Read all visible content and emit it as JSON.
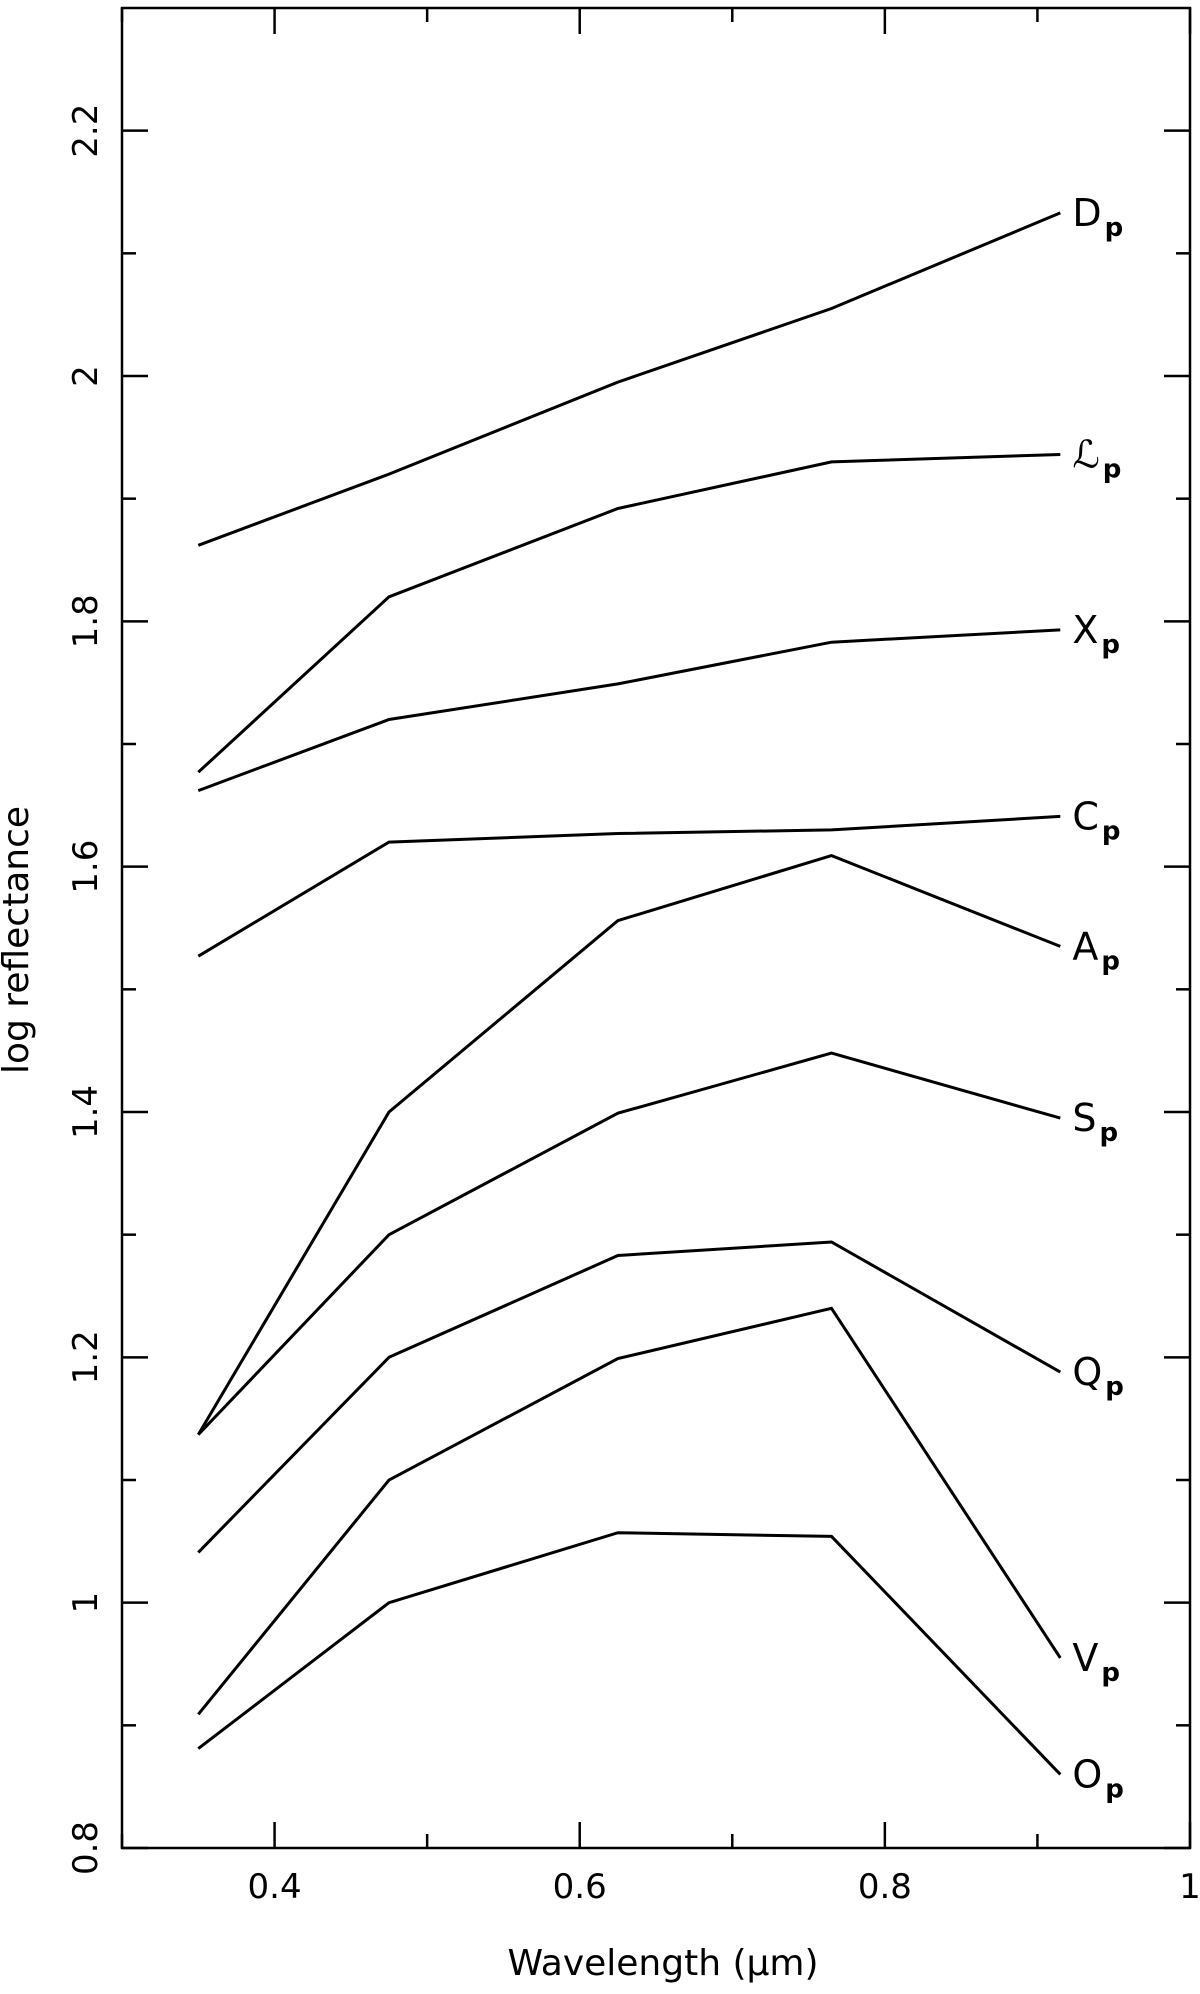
{
  "chart_data": {
    "type": "line",
    "xlabel": "Wavelength (μm)",
    "ylabel": "log reflectance",
    "xlim": [
      0.3,
      1.0
    ],
    "ylim": [
      0.8,
      2.3
    ],
    "xticks_major": [
      0.4,
      0.6,
      0.8,
      1.0
    ],
    "xtick_labels": [
      "0.4",
      "0.6",
      "0.8",
      "1"
    ],
    "xticks_minor": [
      0.3,
      0.5,
      0.7,
      0.9
    ],
    "yticks_major": [
      0.8,
      1.0,
      1.2,
      1.4,
      1.6,
      1.8,
      2.0,
      2.2
    ],
    "ytick_labels": [
      "0.8",
      "1",
      "1.2",
      "1.4",
      "1.6",
      "1.8",
      "2",
      "2.2"
    ],
    "yticks_minor": [
      0.9,
      1.1,
      1.3,
      1.5,
      1.7,
      1.9,
      2.1
    ],
    "grid": false,
    "x": [
      0.35,
      0.475,
      0.625,
      0.765,
      0.915
    ],
    "series": [
      {
        "name": "D",
        "sub": "p",
        "values": [
          1.862,
          1.92,
          1.995,
          2.055,
          2.133
        ]
      },
      {
        "name": "ℒ",
        "sub": "p",
        "values": [
          1.677,
          1.82,
          1.892,
          1.93,
          1.936
        ]
      },
      {
        "name": "X",
        "sub": "p",
        "values": [
          1.662,
          1.72,
          1.749,
          1.783,
          1.793
        ]
      },
      {
        "name": "C",
        "sub": "p",
        "values": [
          1.527,
          1.62,
          1.627,
          1.63,
          1.641
        ]
      },
      {
        "name": "A",
        "sub": "p",
        "values": [
          1.137,
          1.4,
          1.556,
          1.609,
          1.535
        ]
      },
      {
        "name": "S",
        "sub": "p",
        "values": [
          1.137,
          1.3,
          1.399,
          1.448,
          1.395
        ]
      },
      {
        "name": "Q",
        "sub": "p",
        "values": [
          1.041,
          1.2,
          1.283,
          1.294,
          1.188
        ]
      },
      {
        "name": "V",
        "sub": "p",
        "values": [
          0.909,
          1.1,
          1.199,
          1.24,
          0.955
        ]
      },
      {
        "name": "O",
        "sub": "p",
        "values": [
          0.881,
          1.0,
          1.057,
          1.054,
          0.86
        ]
      }
    ]
  }
}
